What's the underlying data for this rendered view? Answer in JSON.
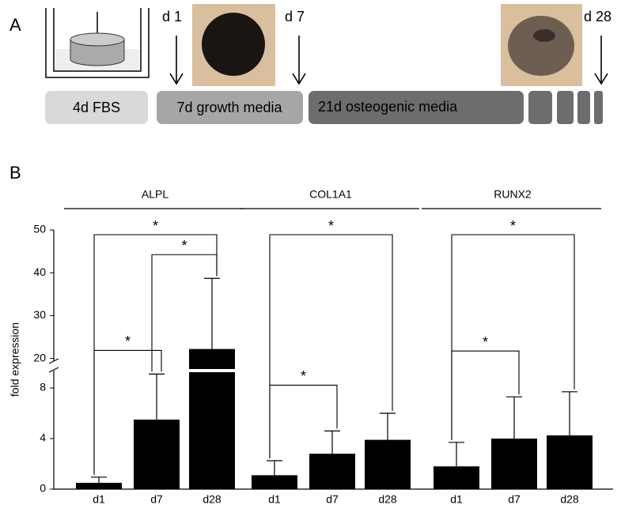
{
  "panel_a": {
    "label": "A",
    "timepoints": [
      "d 1",
      "d 7",
      "d 28"
    ],
    "stages": [
      "4d FBS",
      "7d growth media",
      "21d osteogenic media"
    ]
  },
  "chart_data": {
    "type": "bar",
    "panel_label": "B",
    "y_label": "fold expression",
    "color": "#000000",
    "ylim": [
      0,
      50
    ],
    "yticks": [
      0,
      4,
      8,
      20,
      30,
      40,
      50
    ],
    "axis_break": [
      9.5,
      19
    ],
    "groups": [
      {
        "title": "ALPL",
        "categories": [
          "d1",
          "d7",
          "d28"
        ],
        "values": [
          0.5,
          5.5,
          22.2
        ],
        "errors": [
          0.45,
          3.6,
          16.5
        ],
        "significance": [
          {
            "pair": [
              0,
              1
            ],
            "label": "*"
          },
          {
            "pair": [
              1,
              2
            ],
            "label": "*"
          },
          {
            "pair": [
              0,
              2
            ],
            "label": "*"
          }
        ]
      },
      {
        "title": "COL1A1",
        "categories": [
          "d1",
          "d7",
          "d28"
        ],
        "values": [
          1.1,
          2.8,
          3.9
        ],
        "errors": [
          1.15,
          1.8,
          2.1
        ],
        "significance": [
          {
            "pair": [
              0,
              1
            ],
            "label": "*"
          },
          {
            "pair": [
              0,
              2
            ],
            "label": "*"
          }
        ]
      },
      {
        "title": "RUNX2",
        "categories": [
          "d1",
          "d7",
          "d28"
        ],
        "values": [
          1.8,
          4.0,
          4.25
        ],
        "errors": [
          1.9,
          3.3,
          3.45
        ],
        "significance": [
          {
            "pair": [
              0,
              1
            ],
            "label": "*"
          },
          {
            "pair": [
              0,
              2
            ],
            "label": "*"
          }
        ]
      }
    ]
  }
}
